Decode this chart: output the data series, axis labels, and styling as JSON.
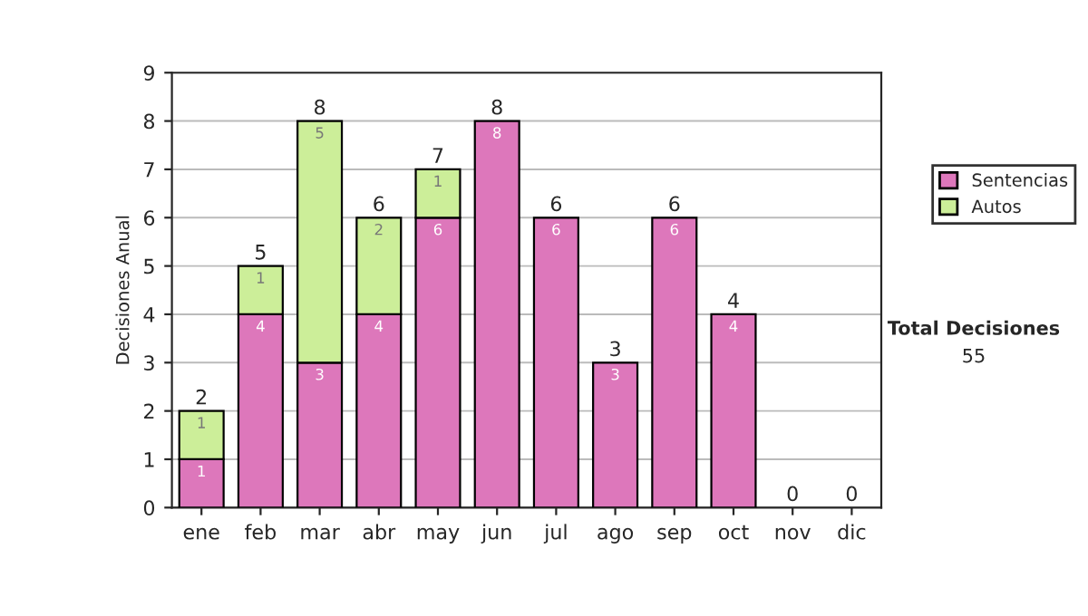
{
  "chart_data": {
    "type": "bar",
    "stacked": true,
    "ylabel": "Decisiones Anual",
    "categories": [
      "ene",
      "feb",
      "mar",
      "abr",
      "may",
      "jun",
      "jul",
      "ago",
      "sep",
      "oct",
      "nov",
      "dic"
    ],
    "series": [
      {
        "name": "Sentencias",
        "color": "#dd77bb",
        "values": [
          1,
          4,
          3,
          4,
          6,
          8,
          6,
          3,
          6,
          4,
          0,
          0
        ],
        "value_labels": [
          "1",
          "4",
          "3",
          "4",
          "6",
          "8",
          "6",
          "3",
          "6",
          "4",
          null,
          null
        ]
      },
      {
        "name": "Autos",
        "color": "#ccee99",
        "values": [
          1,
          1,
          5,
          2,
          1,
          0,
          0,
          0,
          0,
          0,
          0,
          0
        ],
        "value_labels": [
          "1",
          "1",
          "5",
          "2",
          "1",
          null,
          null,
          null,
          null,
          null,
          null,
          null
        ]
      }
    ],
    "totals": [
      "2",
      "5",
      "8",
      "6",
      "7",
      "8",
      "6",
      "3",
      "6",
      "4",
      "0",
      "0"
    ],
    "ylim": [
      0,
      9
    ],
    "yticks": [
      0,
      1,
      2,
      3,
      4,
      5,
      6,
      7,
      8,
      9
    ],
    "grid": "y",
    "legend": "right",
    "annotations": [
      "Total Decisiones",
      "55"
    ]
  }
}
